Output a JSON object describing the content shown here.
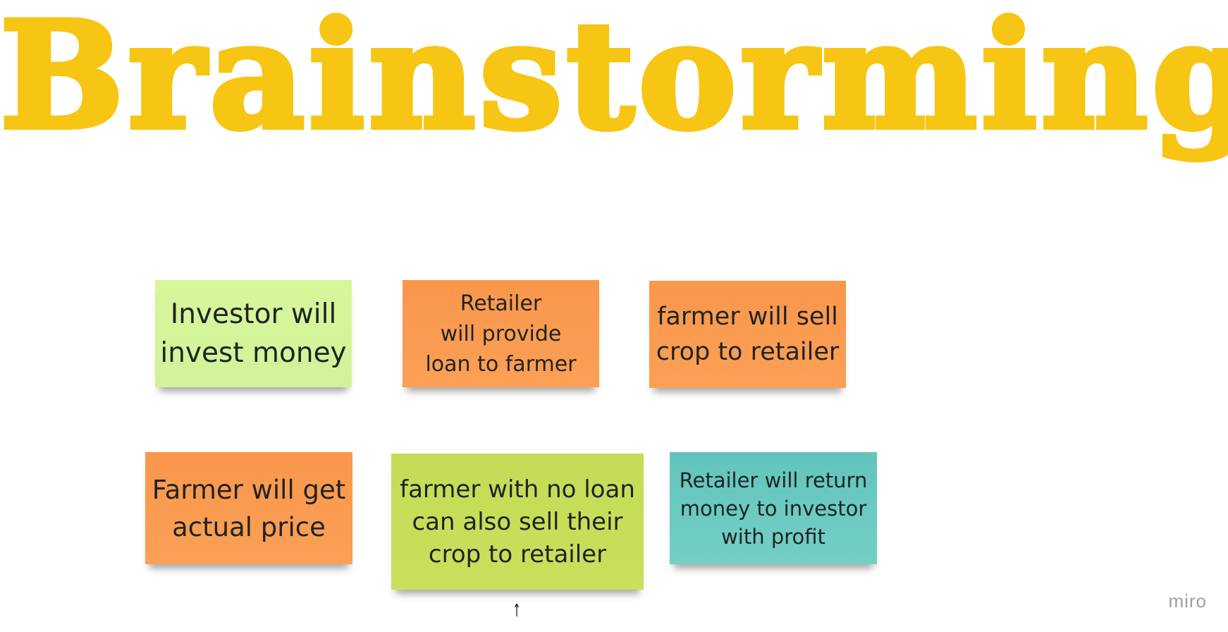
{
  "board": {
    "title": "Brainstorming",
    "title_color": "#f7c513"
  },
  "notes": [
    {
      "text": "Investor will\ninvest money",
      "color": "#d6f79a"
    },
    {
      "text": "Retailer\nwill provide\nloan to farmer",
      "color": "#f9974c"
    },
    {
      "text": "farmer will sell\ncrop to retailer",
      "color": "#f9974c"
    },
    {
      "text": "Farmer will get\nactual price",
      "color": "#f9974c"
    },
    {
      "text": "farmer with no loan\ncan also sell their\ncrop to retailer",
      "color": "#c4dc56"
    },
    {
      "text": "Retailer will return\nmoney to investor\nwith profit",
      "color": "#62c4bd"
    }
  ],
  "branding": {
    "logo_text": "miro"
  },
  "icons": {
    "cursor": "mouse-cursor-icon"
  }
}
